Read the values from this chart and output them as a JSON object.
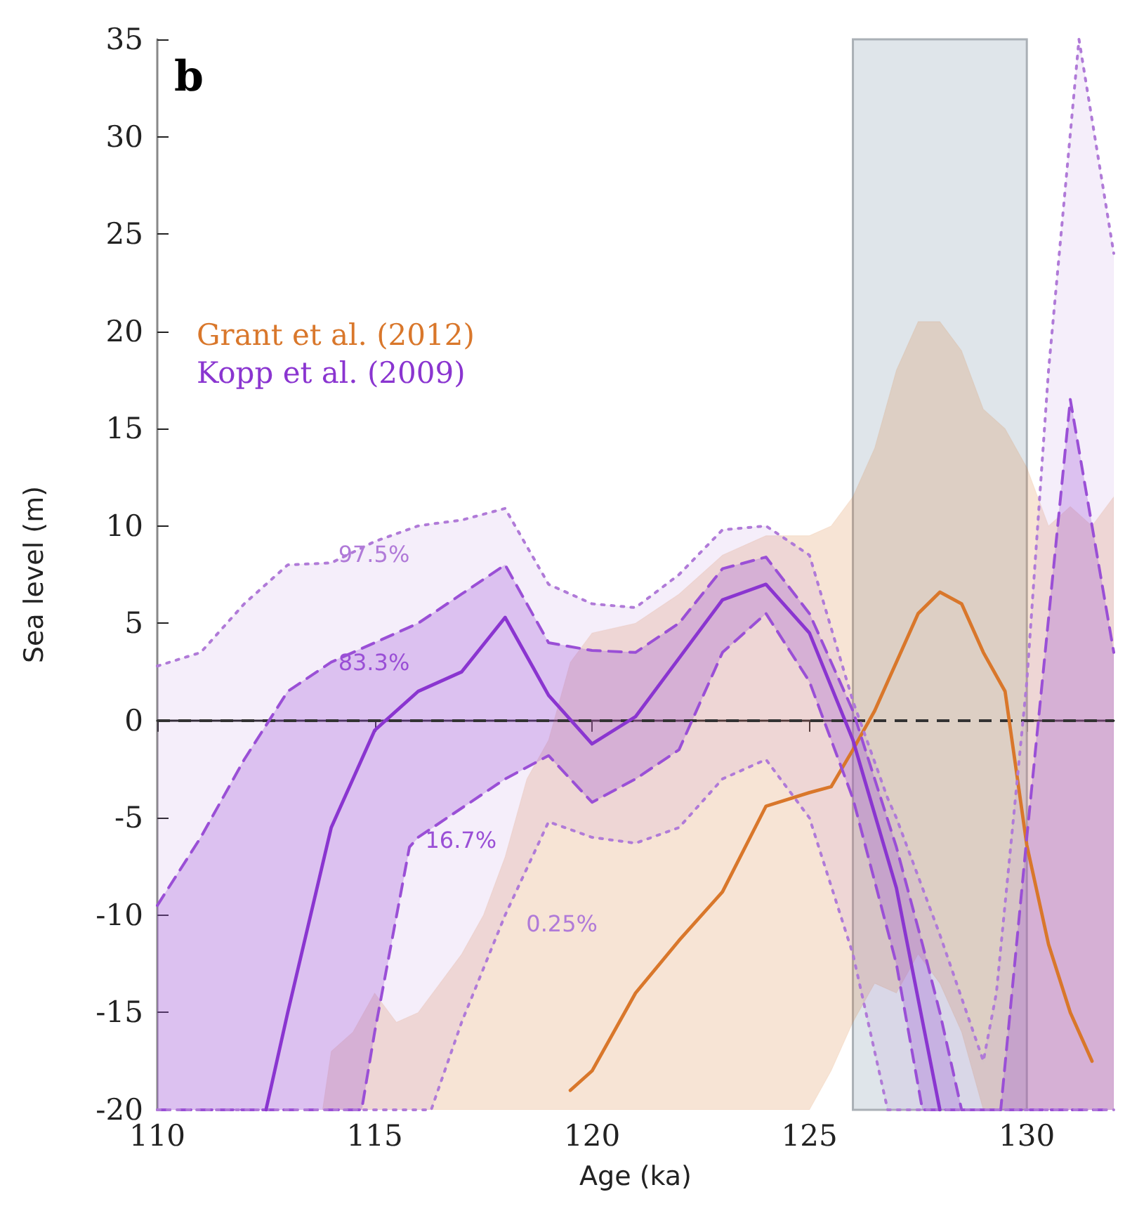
{
  "chart_data": {
    "type": "line",
    "xlabel": "Age (ka)",
    "ylabel": "Sea level (m)",
    "xlim": [
      110,
      132
    ],
    "xticks": [
      110,
      115,
      120,
      125,
      130
    ],
    "ylim": [
      -20,
      35
    ],
    "yticks": [
      -20,
      -15,
      -10,
      -5,
      0,
      5,
      10,
      15,
      20,
      25,
      30,
      35
    ],
    "grid": false,
    "legend": "left",
    "series": [
      {
        "name": "Grant et al. (2012)",
        "color": "#d9772b",
        "line_style": "solid",
        "x": [
          113.8,
          114,
          114.5,
          115,
          115.5,
          116,
          116.5,
          117,
          117.5,
          118,
          118.5,
          119,
          119.5,
          120,
          121,
          122,
          123,
          124,
          125,
          125.5,
          126,
          126.5,
          127,
          127.5,
          128,
          128.5,
          129,
          129.5,
          130,
          130.5,
          131,
          131.5,
          132
        ],
        "values": [
          null,
          null,
          null,
          null,
          null,
          null,
          null,
          null,
          null,
          null,
          null,
          null,
          -19,
          -18,
          -14,
          -11.3,
          -8.8,
          -4.4,
          -3.7,
          -3.4,
          -1.5,
          0.5,
          3,
          5.5,
          6.6,
          6,
          3.5,
          1.5,
          -6.4,
          -11.5,
          -15,
          -17.5,
          null
        ],
        "lower": [
          -20,
          -20,
          -20,
          -20,
          -20,
          -20,
          -20,
          -20,
          -20,
          -20,
          -20,
          -20,
          -20,
          -20,
          -20,
          -20,
          -20,
          -20,
          -20,
          -18,
          -15.5,
          -13.5,
          -14,
          -12,
          -13.5,
          -16,
          -20,
          -20,
          -20,
          -20,
          -20,
          -20,
          -20
        ],
        "upper": [
          -20,
          -17,
          -16,
          -14,
          -15.5,
          -15,
          -13.5,
          -12,
          -10,
          -7,
          -3,
          -1,
          3,
          4.5,
          5,
          6.5,
          8.5,
          9.5,
          9.5,
          10,
          11.5,
          14,
          18,
          20.5,
          20.5,
          19,
          16,
          15,
          13,
          10,
          11,
          10,
          11.5
        ]
      },
      {
        "name": "97.5%",
        "color": "#b07ad8",
        "line_style": "dotted",
        "x": [
          110,
          111,
          112,
          113,
          114,
          115,
          116,
          116.3,
          117,
          118,
          119,
          120,
          121,
          122,
          123,
          124,
          125,
          126,
          126.8,
          127,
          128,
          129,
          129.3,
          130,
          130.5,
          131.2,
          132
        ],
        "values": [
          2.8,
          3.5,
          6,
          8,
          8.1,
          9.2,
          10,
          10.1,
          10.3,
          10.9,
          7,
          6,
          5.8,
          7.5,
          9.8,
          10,
          8.5,
          1,
          -4,
          -5,
          -11,
          -17.5,
          -14,
          2,
          18,
          35,
          24
        ],
        "upper": [
          2.8,
          3.5,
          6,
          8,
          8.1,
          9.2,
          10,
          10.1,
          10.3,
          10.9,
          7,
          6,
          5.8,
          7.5,
          9.8,
          10,
          8.5,
          1,
          -4,
          -5,
          -11,
          -17.5,
          -14,
          2,
          18,
          35,
          24
        ],
        "lower": [
          -20,
          -20,
          -20,
          -20,
          -20,
          -20,
          -20,
          -20,
          -15.5,
          -10,
          -5.2,
          -6,
          -6.3,
          -5.5,
          -3,
          -2,
          -5,
          -12,
          -20,
          -20,
          -20,
          -20,
          -20,
          -20,
          -20,
          -20,
          -20
        ]
      },
      {
        "name": "83.3%",
        "color": "#9a4fd6",
        "line_style": "dashed",
        "x": [
          110,
          111,
          112,
          113,
          114,
          114.7,
          115,
          115.8,
          116,
          117,
          118,
          119,
          120,
          121,
          122,
          123,
          124,
          125,
          126,
          127,
          127.6,
          128,
          128.5,
          129.4,
          130,
          131,
          132
        ],
        "values": [
          -9.5,
          -6,
          -2,
          1.5,
          3,
          3.7,
          4,
          4.8,
          5,
          6.5,
          8,
          4,
          3.6,
          3.5,
          5,
          7.8,
          8.4,
          5.5,
          0.5,
          -6.5,
          -11.5,
          -15,
          -20,
          -20,
          -6,
          16.5,
          3.5
        ],
        "upper": [
          -9.5,
          -6,
          -2,
          1.5,
          3,
          3.7,
          4,
          4.8,
          5,
          6.5,
          8,
          4,
          3.6,
          3.5,
          5,
          7.8,
          8.4,
          5.5,
          0.5,
          -6.5,
          -11.5,
          -15,
          -20,
          -20,
          -6,
          16.5,
          3.5
        ],
        "lower": [
          -20,
          -20,
          -20,
          -20,
          -20,
          -20,
          -16,
          -6.5,
          -6,
          -4.5,
          -3,
          -1.8,
          -4.2,
          -3,
          -1.5,
          3.5,
          5.5,
          2,
          -4,
          -12.5,
          -20,
          -20,
          -20,
          -20,
          -20,
          -20,
          -20
        ]
      },
      {
        "name": "16.7%",
        "color": "#9a4fd6",
        "line_style": "dashed",
        "x": [
          110,
          111,
          112,
          113,
          114,
          114.7,
          115,
          115.8,
          116,
          117,
          118,
          119,
          120,
          121,
          122,
          123,
          124,
          125,
          126,
          127,
          127.6,
          128,
          128.5,
          129.4,
          130,
          131,
          132
        ],
        "values": [
          -20,
          -20,
          -20,
          -20,
          -20,
          -20,
          -16,
          -6.5,
          -6,
          -4.5,
          -3,
          -1.8,
          -4.2,
          -3,
          -1.5,
          3.5,
          5.5,
          2,
          -4,
          -12.5,
          -20,
          -20,
          -20,
          -20,
          -20,
          -20,
          -20
        ]
      },
      {
        "name": "0.25%",
        "color": "#b07ad8",
        "line_style": "dotted",
        "x": [
          110,
          111,
          112,
          113,
          114,
          115,
          116,
          116.3,
          117,
          118,
          119,
          120,
          121,
          122,
          123,
          124,
          125,
          126,
          126.8,
          127,
          128,
          129,
          129.3,
          130,
          130.5,
          131.2,
          132
        ],
        "values": [
          -20,
          -20,
          -20,
          -20,
          -20,
          -20,
          -20,
          -20,
          -15.5,
          -10,
          -5.2,
          -6,
          -6.3,
          -5.5,
          -3,
          -2,
          -5,
          -12,
          -20,
          -20,
          -20,
          -20,
          -20,
          -20,
          -20,
          -20,
          -20
        ]
      },
      {
        "name": "Kopp et al. (2009)",
        "color": "#8a35d0",
        "line_style": "solid",
        "x": [
          112.5,
          113,
          114,
          115,
          116,
          117,
          118,
          119,
          120,
          121,
          122,
          123,
          124,
          125,
          126,
          127,
          128
        ],
        "values": [
          -20,
          -15,
          -5.5,
          -0.5,
          1.5,
          2.5,
          5.3,
          1.3,
          -1.2,
          0.2,
          3.2,
          6.2,
          7,
          4.5,
          -1,
          -8.6,
          -20
        ]
      }
    ],
    "ref_lines": [
      {
        "axis": "y",
        "value": 0,
        "color": "#333333",
        "line_style": "dashed"
      }
    ],
    "bands": [
      {
        "axis": "x",
        "from": 126,
        "to": 130,
        "color": "#dfe5ea"
      }
    ],
    "annotations": [
      "b"
    ]
  }
}
